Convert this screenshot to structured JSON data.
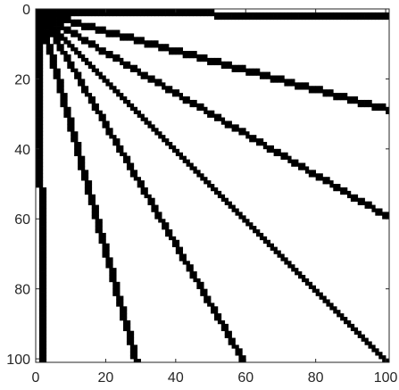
{
  "chart_data": {
    "type": "heatmap",
    "colormap": "binary (white = 0, black = 1)",
    "grid": false,
    "axis_direction": "matrix (y increases downward)",
    "xlim": [
      0,
      101
    ],
    "ylim": [
      0,
      101
    ],
    "xticks": [
      0,
      20,
      40,
      60,
      80,
      100
    ],
    "yticks": [
      0,
      20,
      40,
      60,
      80,
      100
    ],
    "xtick_labels": [
      "0",
      "20",
      "40",
      "60",
      "80",
      "100"
    ],
    "ytick_labels": [
      "0",
      "20",
      "40",
      "60",
      "80",
      "100"
    ],
    "background_value": 0,
    "origin_block": {
      "x_from": 0,
      "x_to": 5,
      "y_from": 0,
      "y_to": 5,
      "value": 1
    },
    "rays": [
      {
        "name": "top edge",
        "end": [
          101,
          1
        ],
        "value": 1
      },
      {
        "name": "ray to (101,28)",
        "end": [
          101,
          28
        ],
        "value": 1
      },
      {
        "name": "ray to (101,59)",
        "end": [
          101,
          59
        ],
        "value": 1
      },
      {
        "name": "diagonal",
        "end": [
          101,
          101
        ],
        "value": 1
      },
      {
        "name": "ray to (59,101)",
        "end": [
          59,
          101
        ],
        "value": 1
      },
      {
        "name": "ray to (28,101)",
        "end": [
          28,
          101
        ],
        "value": 1
      },
      {
        "name": "left edge",
        "end": [
          1,
          101
        ],
        "value": 1
      }
    ]
  }
}
